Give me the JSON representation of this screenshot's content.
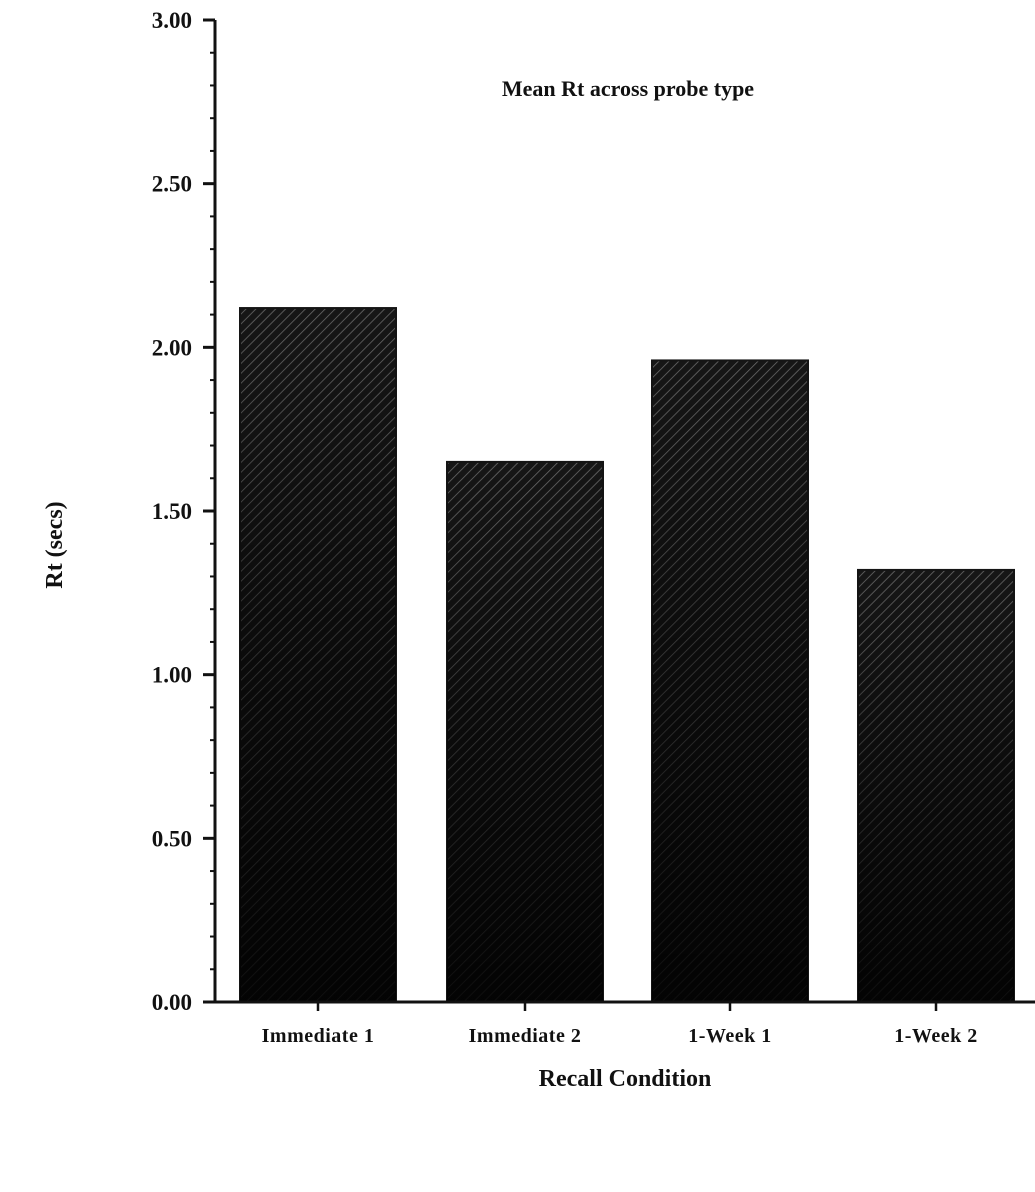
{
  "chart_data": {
    "type": "bar",
    "title": "Mean Rt across probe type",
    "xlabel": "Recall Condition",
    "ylabel": "Rt (secs)",
    "categories": [
      "Immediate 1",
      "Immediate 2",
      "1-Week 1",
      "1-Week 2"
    ],
    "values": [
      2.12,
      1.65,
      1.96,
      1.32
    ],
    "ylim": [
      0,
      3
    ],
    "yticks": [
      "0.00",
      "0.50",
      "1.00",
      "1.50",
      "2.00",
      "2.50",
      "3.00"
    ],
    "bar_color": "#141414",
    "hatch_color": "#5a5a5a",
    "grid": false,
    "legend": "none"
  }
}
